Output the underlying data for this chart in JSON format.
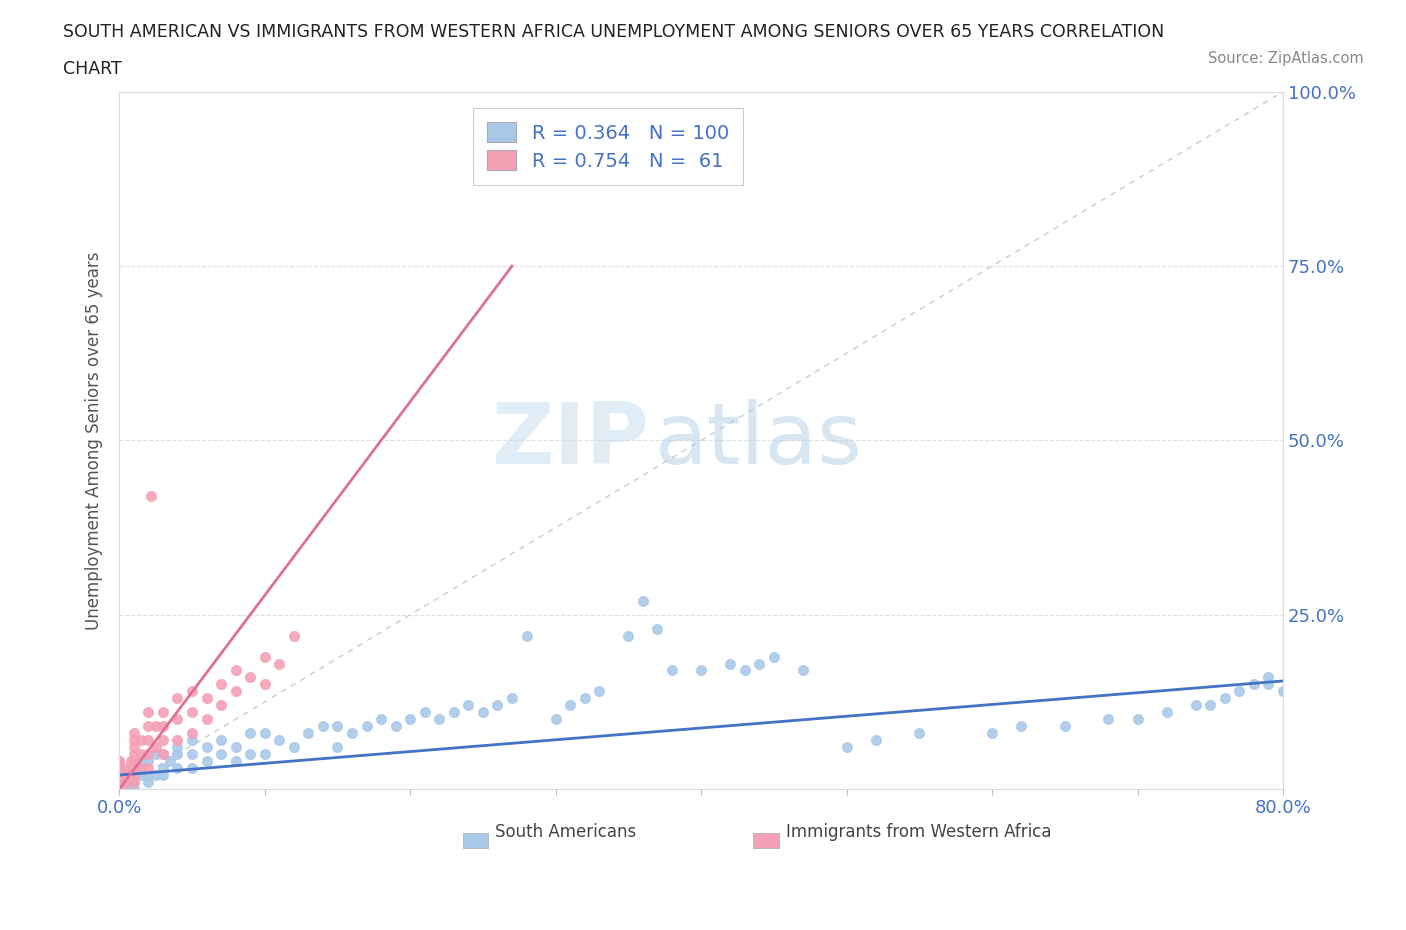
{
  "title_line1": "SOUTH AMERICAN VS IMMIGRANTS FROM WESTERN AFRICA UNEMPLOYMENT AMONG SENIORS OVER 65 YEARS CORRELATION",
  "title_line2": "CHART",
  "source_text": "Source: ZipAtlas.com",
  "ylabel": "Unemployment Among Seniors over 65 years",
  "xlim": [
    0.0,
    0.8
  ],
  "ylim": [
    0.0,
    1.0
  ],
  "blue_color": "#A8C8E8",
  "pink_color": "#F4A0B5",
  "blue_line_color": "#4472C4",
  "pink_line_color": "#E07090",
  "diagonal_color": "#CCCCCC",
  "legend_R1": "R = 0.364",
  "legend_N1": "N = 100",
  "legend_R2": "R = 0.754",
  "legend_N2": "N =  61",
  "legend_label_color": "#4472C4",
  "watermark_zip": "ZIP",
  "watermark_atlas": "atlas",
  "blue_scatter_x": [
    0.0,
    0.0,
    0.0,
    0.0,
    0.0,
    0.0,
    0.0,
    0.0,
    0.0,
    0.0,
    0.0,
    0.0,
    0.0,
    0.0,
    0.0,
    0.005,
    0.005,
    0.008,
    0.008,
    0.01,
    0.01,
    0.01,
    0.01,
    0.015,
    0.015,
    0.02,
    0.02,
    0.02,
    0.025,
    0.025,
    0.03,
    0.03,
    0.03,
    0.035,
    0.04,
    0.04,
    0.04,
    0.05,
    0.05,
    0.05,
    0.06,
    0.06,
    0.07,
    0.07,
    0.08,
    0.08,
    0.09,
    0.09,
    0.1,
    0.1,
    0.11,
    0.12,
    0.13,
    0.14,
    0.15,
    0.15,
    0.16,
    0.17,
    0.18,
    0.19,
    0.2,
    0.21,
    0.22,
    0.23,
    0.24,
    0.25,
    0.26,
    0.27,
    0.28,
    0.3,
    0.31,
    0.32,
    0.33,
    0.35,
    0.36,
    0.37,
    0.38,
    0.4,
    0.42,
    0.43,
    0.44,
    0.45,
    0.47,
    0.5,
    0.52,
    0.55,
    0.6,
    0.62,
    0.65,
    0.68,
    0.7,
    0.72,
    0.74,
    0.75,
    0.76,
    0.77,
    0.78,
    0.79,
    0.79,
    0.8
  ],
  "blue_scatter_y": [
    0.0,
    0.0,
    0.0,
    0.0,
    0.0,
    0.0,
    0.0,
    0.01,
    0.01,
    0.01,
    0.02,
    0.02,
    0.03,
    0.03,
    0.04,
    0.0,
    0.02,
    0.01,
    0.03,
    0.0,
    0.01,
    0.02,
    0.03,
    0.02,
    0.04,
    0.01,
    0.02,
    0.04,
    0.02,
    0.05,
    0.02,
    0.03,
    0.05,
    0.04,
    0.03,
    0.05,
    0.06,
    0.03,
    0.05,
    0.07,
    0.04,
    0.06,
    0.05,
    0.07,
    0.04,
    0.06,
    0.05,
    0.08,
    0.05,
    0.08,
    0.07,
    0.06,
    0.08,
    0.09,
    0.06,
    0.09,
    0.08,
    0.09,
    0.1,
    0.09,
    0.1,
    0.11,
    0.1,
    0.11,
    0.12,
    0.11,
    0.12,
    0.13,
    0.22,
    0.1,
    0.12,
    0.13,
    0.14,
    0.22,
    0.27,
    0.23,
    0.17,
    0.17,
    0.18,
    0.17,
    0.18,
    0.19,
    0.17,
    0.06,
    0.07,
    0.08,
    0.08,
    0.09,
    0.09,
    0.1,
    0.1,
    0.11,
    0.12,
    0.12,
    0.13,
    0.14,
    0.15,
    0.16,
    0.15,
    0.14
  ],
  "pink_scatter_x": [
    0.0,
    0.0,
    0.0,
    0.0,
    0.0,
    0.0,
    0.0,
    0.0,
    0.0,
    0.0,
    0.0,
    0.0,
    0.0,
    0.0,
    0.0,
    0.0,
    0.005,
    0.005,
    0.005,
    0.008,
    0.008,
    0.01,
    0.01,
    0.01,
    0.01,
    0.01,
    0.01,
    0.01,
    0.01,
    0.015,
    0.015,
    0.015,
    0.02,
    0.02,
    0.02,
    0.02,
    0.02,
    0.025,
    0.025,
    0.03,
    0.03,
    0.03,
    0.03,
    0.04,
    0.04,
    0.04,
    0.05,
    0.05,
    0.05,
    0.06,
    0.06,
    0.07,
    0.07,
    0.08,
    0.08,
    0.09,
    0.1,
    0.1,
    0.11,
    0.12,
    0.022
  ],
  "pink_scatter_y": [
    0.0,
    0.0,
    0.0,
    0.0,
    0.0,
    0.0,
    0.0,
    0.0,
    0.01,
    0.01,
    0.01,
    0.02,
    0.02,
    0.03,
    0.03,
    0.04,
    0.01,
    0.02,
    0.03,
    0.02,
    0.04,
    0.01,
    0.02,
    0.03,
    0.04,
    0.05,
    0.06,
    0.07,
    0.08,
    0.03,
    0.05,
    0.07,
    0.03,
    0.05,
    0.07,
    0.09,
    0.11,
    0.06,
    0.09,
    0.05,
    0.07,
    0.09,
    0.11,
    0.07,
    0.1,
    0.13,
    0.08,
    0.11,
    0.14,
    0.1,
    0.13,
    0.12,
    0.15,
    0.14,
    0.17,
    0.16,
    0.15,
    0.19,
    0.18,
    0.22,
    0.42
  ],
  "blue_trend_x": [
    0.0,
    0.8
  ],
  "blue_trend_y": [
    0.02,
    0.155
  ],
  "pink_trend_x": [
    0.0,
    0.27
  ],
  "pink_trend_y": [
    0.0,
    0.75
  ]
}
